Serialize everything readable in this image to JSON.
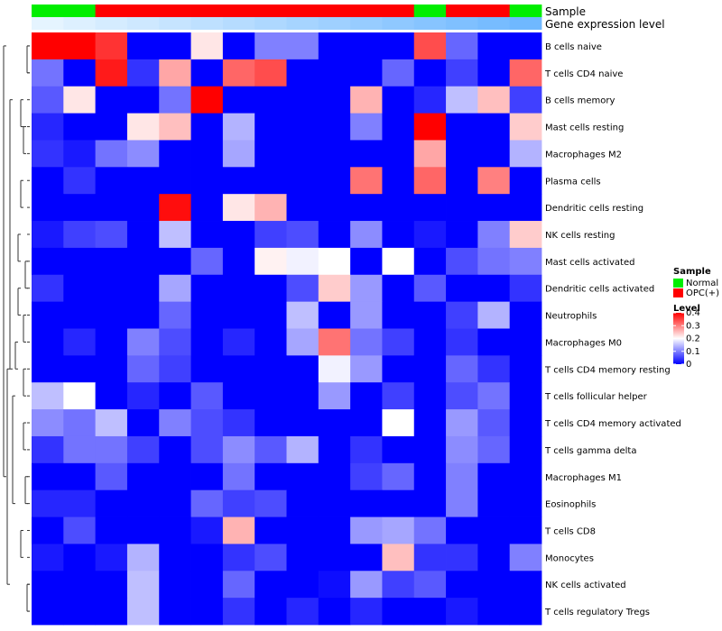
{
  "chart_data": {
    "type": "heatmap",
    "annotation_labels": [
      "Sample",
      "Gene expression level"
    ],
    "rows": [
      "B cells naive",
      "T cells CD4 naive",
      "B cells memory",
      "Mast cells resting",
      "Macrophages M2",
      "Plasma cells",
      "Dendritic cells resting",
      "NK cells resting",
      "Mast cells activated",
      "Dendritic cells activated",
      "Neutrophils",
      "Macrophages M0",
      "T cells CD4 memory resting",
      "T cells follicular helper",
      "T cells CD4 memory activated",
      "T cells gamma delta",
      "Macrophages M1",
      "Eosinophils",
      "T cells CD8",
      "Monocytes",
      "NK cells activated",
      "T cells regulatory  Tregs"
    ],
    "sample_groups": [
      "Normal",
      "Normal",
      "OPC(+)",
      "OPC(+)",
      "OPC(+)",
      "OPC(+)",
      "OPC(+)",
      "OPC(+)",
      "OPC(+)",
      "OPC(+)",
      "OPC(+)",
      "OPC(+)",
      "Normal",
      "OPC(+)",
      "OPC(+)",
      "Normal"
    ],
    "expression_level": [
      0.05,
      0.1,
      0.15,
      0.2,
      0.25,
      0.3,
      0.35,
      0.4,
      0.45,
      0.5,
      0.55,
      0.6,
      0.65,
      0.7,
      0.75,
      0.8
    ],
    "values": [
      [
        0.4,
        0.4,
        0.36,
        0.0,
        0.0,
        0.22,
        0.0,
        0.1,
        0.1,
        0.0,
        0.0,
        0.0,
        0.34,
        0.08,
        0.0,
        0.0
      ],
      [
        0.09,
        0.0,
        0.38,
        0.04,
        0.27,
        0.0,
        0.32,
        0.34,
        0.0,
        0.0,
        0.0,
        0.08,
        0.0,
        0.05,
        0.0,
        0.32
      ],
      [
        0.07,
        0.22,
        0.0,
        0.0,
        0.09,
        0.4,
        0.0,
        0.0,
        0.0,
        0.0,
        0.26,
        0.0,
        0.03,
        0.15,
        0.25,
        0.05
      ],
      [
        0.03,
        0.0,
        0.0,
        0.22,
        0.25,
        0.0,
        0.14,
        0.0,
        0.0,
        0.0,
        0.1,
        0.0,
        0.4,
        0.0,
        0.0,
        0.24
      ],
      [
        0.04,
        0.02,
        0.09,
        0.11,
        0.0,
        0.0,
        0.13,
        0.0,
        0.0,
        0.0,
        0.0,
        0.0,
        0.27,
        0.0,
        0.0,
        0.14
      ],
      [
        0.0,
        0.04,
        0.0,
        0.0,
        0.0,
        0.0,
        0.0,
        0.0,
        0.0,
        0.0,
        0.31,
        0.0,
        0.32,
        0.0,
        0.3,
        0.0
      ],
      [
        0.0,
        0.0,
        0.0,
        0.0,
        0.39,
        0.0,
        0.22,
        0.26,
        0.0,
        0.0,
        0.0,
        0.0,
        0.0,
        0.0,
        0.0,
        0.0
      ],
      [
        0.02,
        0.05,
        0.06,
        0.0,
        0.15,
        0.0,
        0.0,
        0.05,
        0.06,
        0.0,
        0.11,
        0.0,
        0.02,
        0.0,
        0.1,
        0.24
      ],
      [
        0.0,
        0.0,
        0.0,
        0.0,
        0.0,
        0.08,
        0.0,
        0.21,
        0.19,
        0.2,
        0.0,
        0.2,
        0.0,
        0.06,
        0.09,
        0.1
      ],
      [
        0.04,
        0.0,
        0.0,
        0.0,
        0.13,
        0.0,
        0.0,
        0.0,
        0.06,
        0.24,
        0.12,
        0.0,
        0.07,
        0.0,
        0.0,
        0.04
      ],
      [
        0.0,
        0.0,
        0.0,
        0.0,
        0.08,
        0.0,
        0.0,
        0.0,
        0.15,
        0.0,
        0.12,
        0.0,
        0.0,
        0.05,
        0.14,
        0.0
      ],
      [
        0.0,
        0.03,
        0.0,
        0.1,
        0.06,
        0.0,
        0.03,
        0.0,
        0.13,
        0.31,
        0.09,
        0.05,
        0.0,
        0.04,
        0.0,
        0.0
      ],
      [
        0.0,
        0.0,
        0.0,
        0.08,
        0.05,
        0.0,
        0.0,
        0.0,
        0.0,
        0.19,
        0.12,
        0.0,
        0.0,
        0.08,
        0.04,
        0.0
      ],
      [
        0.15,
        0.2,
        0.0,
        0.03,
        0.0,
        0.07,
        0.0,
        0.0,
        0.0,
        0.12,
        0.0,
        0.05,
        0.0,
        0.06,
        0.09,
        0.0
      ],
      [
        0.11,
        0.09,
        0.15,
        0.0,
        0.1,
        0.06,
        0.04,
        0.0,
        0.0,
        0.0,
        0.0,
        0.2,
        0.0,
        0.12,
        0.07,
        0.0
      ],
      [
        0.04,
        0.09,
        0.09,
        0.05,
        0.0,
        0.06,
        0.11,
        0.07,
        0.14,
        0.0,
        0.04,
        0.0,
        0.0,
        0.11,
        0.08,
        0.0
      ],
      [
        0.0,
        0.0,
        0.07,
        0.0,
        0.0,
        0.0,
        0.09,
        0.0,
        0.0,
        0.0,
        0.05,
        0.08,
        0.0,
        0.1,
        0.0,
        0.0
      ],
      [
        0.03,
        0.03,
        0.0,
        0.0,
        0.0,
        0.08,
        0.05,
        0.06,
        0.0,
        0.0,
        0.0,
        0.0,
        0.0,
        0.1,
        0.0,
        0.0
      ],
      [
        0.0,
        0.06,
        0.0,
        0.0,
        0.0,
        0.02,
        0.26,
        0.0,
        0.0,
        0.0,
        0.12,
        0.13,
        0.09,
        0.0,
        0.0,
        0.0
      ],
      [
        0.02,
        0.0,
        0.02,
        0.14,
        0.0,
        0.0,
        0.04,
        0.06,
        0.0,
        0.0,
        0.0,
        0.25,
        0.04,
        0.04,
        0.0,
        0.1
      ],
      [
        0.0,
        0.0,
        0.0,
        0.15,
        0.0,
        0.0,
        0.08,
        0.0,
        0.0,
        0.01,
        0.12,
        0.05,
        0.07,
        0.0,
        0.0,
        0.0
      ],
      [
        0.0,
        0.0,
        0.0,
        0.15,
        0.0,
        0.0,
        0.04,
        0.0,
        0.03,
        0.0,
        0.03,
        0.0,
        0.0,
        0.02,
        0.0,
        0.0
      ]
    ],
    "legend": {
      "sample_title": "Sample",
      "sample_entries": [
        {
          "name": "Normal",
          "color": "#00ee00"
        },
        {
          "name": "OPC(+)",
          "color": "#ff0000"
        }
      ],
      "level_title": "Level",
      "level_ticks": [
        "0.4",
        "0.3",
        "0.2",
        "0.1",
        "0"
      ],
      "level_range": [
        0,
        0.4
      ],
      "placement": "right"
    },
    "colors": {
      "low": "#0000ff",
      "mid": "#ffffff",
      "high": "#ff0000"
    }
  }
}
